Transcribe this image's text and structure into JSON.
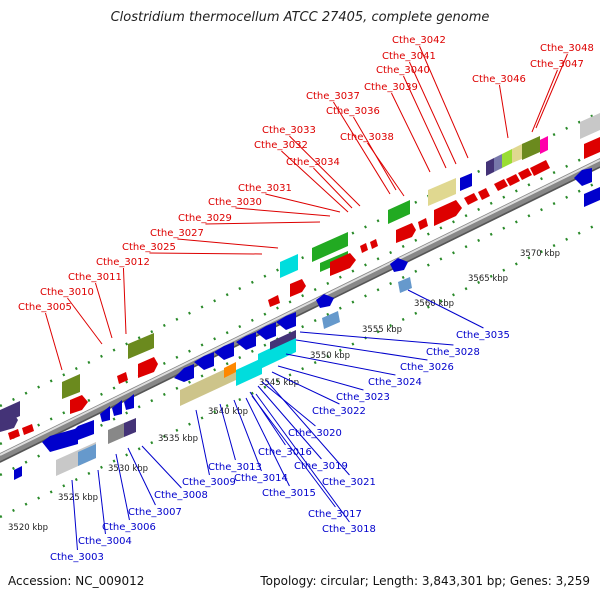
{
  "title": "Clostridium thermocellum ATCC 27405, complete genome",
  "footer": {
    "accession": "Accession: NC_009012",
    "summary": "Topology: circular; Length: 3,843,301 bp; Genes: 3,259"
  },
  "colors": {
    "upper_label": "#dd0000",
    "lower_label": "#0000cc",
    "tick": "#2a8a2a",
    "backbone": "#888888"
  },
  "kbp_ticks": [
    "3520 kbp",
    "3525 kbp",
    "3530 kbp",
    "3535 kbp",
    "3540 kbp",
    "3545 kbp",
    "3550 kbp",
    "3555 kbp",
    "3560 kbp",
    "3565 kbp",
    "3570 kbp"
  ],
  "upper_labels": [
    "Cthe_3005",
    "Cthe_3010",
    "Cthe_3011",
    "Cthe_3012",
    "Cthe_3025",
    "Cthe_3027",
    "Cthe_3029",
    "Cthe_3030",
    "Cthe_3031",
    "Cthe_3034",
    "Cthe_3032",
    "Cthe_3033",
    "Cthe_3038",
    "Cthe_3036",
    "Cthe_3037",
    "Cthe_3039",
    "Cthe_3040",
    "Cthe_3041",
    "Cthe_3042",
    "Cthe_3046",
    "Cthe_3047",
    "Cthe_3048"
  ],
  "lower_labels": [
    "Cthe_3003",
    "Cthe_3004",
    "Cthe_3006",
    "Cthe_3007",
    "Cthe_3008",
    "Cthe_3009",
    "Cthe_3013",
    "Cthe_3014",
    "Cthe_3015",
    "Cthe_3016",
    "Cthe_3017",
    "Cthe_3018",
    "Cthe_3019",
    "Cthe_3020",
    "Cthe_3021",
    "Cthe_3022",
    "Cthe_3023",
    "Cthe_3024",
    "Cthe_3026",
    "Cthe_3028",
    "Cthe_3035"
  ]
}
